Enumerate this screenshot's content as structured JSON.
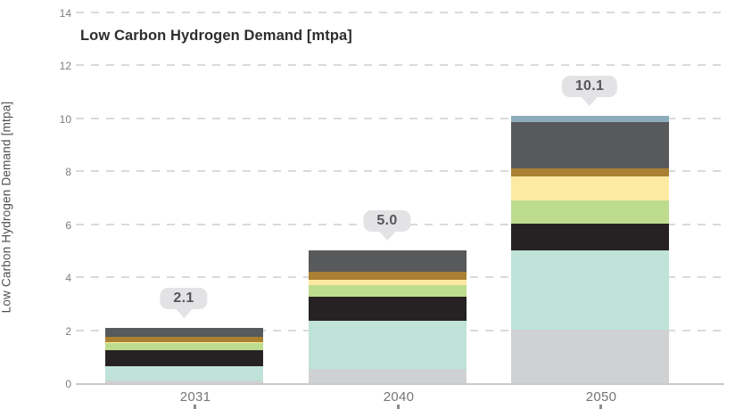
{
  "chart": {
    "title": "Low Carbon Hydrogen Demand [mtpa]",
    "y_axis_label": "Low Carbon Hydrogen Demand [mtpa]"
  },
  "chart_data": {
    "type": "bar",
    "stacked": true,
    "title": "Low Carbon Hydrogen Demand [mtpa]",
    "xlabel": "",
    "ylabel": "Low Carbon Hydrogen Demand [mtpa]",
    "categories": [
      "2031",
      "2040",
      "2050"
    ],
    "totals": [
      2.1,
      5.0,
      10.1
    ],
    "total_labels": [
      "2.1",
      "5.0",
      "10.1"
    ],
    "ylim": [
      0,
      14
    ],
    "yticks": [
      0,
      2,
      4,
      6,
      8,
      10,
      12,
      14
    ],
    "grid": "horizontal-dashed",
    "legend_position": "none",
    "series": [
      {
        "name": "segment-light-gray",
        "color": "#d0d1d3",
        "values": [
          0.1,
          0.55,
          2.0
        ]
      },
      {
        "name": "segment-mint-teal",
        "color": "#bfe3d8",
        "values": [
          0.55,
          1.8,
          3.0
        ]
      },
      {
        "name": "segment-black",
        "color": "#262223",
        "values": [
          0.6,
          0.9,
          1.0
        ]
      },
      {
        "name": "segment-light-green",
        "color": "#bedc8e",
        "values": [
          0.25,
          0.45,
          0.9
        ]
      },
      {
        "name": "segment-pale-yellow",
        "color": "#fce9a2",
        "values": [
          0.05,
          0.2,
          0.9
        ]
      },
      {
        "name": "segment-ochre-brown",
        "color": "#aa8132",
        "values": [
          0.2,
          0.3,
          0.3
        ]
      },
      {
        "name": "segment-dark-gray",
        "color": "#58595b",
        "values": [
          0.35,
          0.8,
          1.75
        ]
      },
      {
        "name": "segment-steel-blue",
        "color": "#8cacbc",
        "values": [
          0.0,
          0.0,
          0.25
        ]
      }
    ],
    "colors": {
      "gridline": "#d9dadc",
      "axis_line": "#c9cacc",
      "tick_text": "#7c7d80",
      "title_text": "#2f2d2e",
      "callout_bg": "#e3e3e5",
      "callout_text": "#55565a"
    }
  }
}
